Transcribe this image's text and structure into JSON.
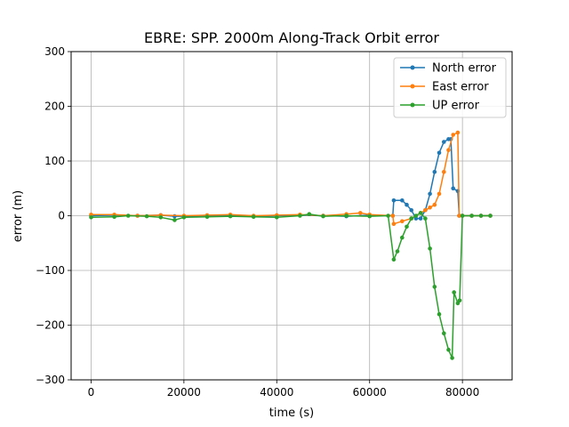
{
  "chart_data": {
    "type": "line",
    "title": "EBRE: SPP. 2000m Along-Track Orbit error",
    "xlabel": "time (s)",
    "ylabel": "error (m)",
    "xlim": [
      -4300,
      90700
    ],
    "ylim": [
      -300,
      300
    ],
    "xticks": [
      0,
      20000,
      40000,
      60000,
      80000
    ],
    "xtick_labels": [
      "0",
      "20000",
      "40000",
      "60000",
      "80000"
    ],
    "yticks": [
      -300,
      -200,
      -100,
      0,
      100,
      200,
      300
    ],
    "ytick_labels": [
      "−300",
      "−200",
      "−100",
      "0",
      "100",
      "200",
      "300"
    ],
    "grid": true,
    "legend_position": "top-right",
    "series": [
      {
        "name": "North error",
        "color": "#1f77b4",
        "x": [
          0,
          5000,
          10000,
          15000,
          18000,
          20000,
          25000,
          30000,
          35000,
          40000,
          45000,
          50000,
          55000,
          60000,
          65000,
          65200,
          67000,
          68000,
          69000,
          70000,
          71000,
          72000,
          73000,
          74000,
          75000,
          76000,
          77000,
          77500,
          78000,
          79000,
          79300,
          80000,
          82000,
          84000,
          86000
        ],
        "values": [
          0,
          1,
          0,
          1,
          -1,
          -1,
          0,
          1,
          -1,
          0,
          1,
          0,
          -1,
          1,
          0,
          28,
          28,
          20,
          10,
          -5,
          -5,
          10,
          40,
          80,
          115,
          135,
          140,
          140,
          50,
          45,
          0,
          0,
          0,
          0,
          0
        ]
      },
      {
        "name": "East error",
        "color": "#ff7f0e",
        "x": [
          0,
          5000,
          10000,
          15000,
          20000,
          25000,
          30000,
          35000,
          40000,
          45000,
          50000,
          55000,
          58000,
          60000,
          65000,
          65200,
          67000,
          69000,
          71000,
          72000,
          73000,
          74000,
          75000,
          76000,
          77000,
          78000,
          79000,
          79300,
          80000,
          82000,
          84000,
          86000
        ],
        "values": [
          2,
          2,
          0,
          1,
          0,
          1,
          2,
          0,
          1,
          2,
          0,
          3,
          5,
          2,
          0,
          -15,
          -10,
          -5,
          5,
          10,
          15,
          20,
          40,
          80,
          120,
          148,
          152,
          0,
          0,
          0,
          0,
          0
        ]
      },
      {
        "name": "UP error",
        "color": "#2ca02c",
        "x": [
          0,
          5000,
          8000,
          12000,
          15000,
          18000,
          20000,
          25000,
          30000,
          35000,
          40000,
          45000,
          47000,
          50000,
          55000,
          60000,
          64000,
          65200,
          66000,
          67000,
          68000,
          69000,
          70000,
          71000,
          72000,
          73000,
          74000,
          75000,
          76000,
          77000,
          77800,
          78200,
          79000,
          79400,
          80000,
          82000,
          84000,
          86000
        ],
        "values": [
          -3,
          -2,
          0,
          -1,
          -3,
          -8,
          -3,
          -2,
          -1,
          -2,
          -3,
          0,
          3,
          -1,
          0,
          -1,
          0,
          -80,
          -65,
          -40,
          -20,
          -5,
          0,
          5,
          -5,
          -60,
          -130,
          -180,
          -215,
          -245,
          -260,
          -140,
          -160,
          -155,
          0,
          0,
          0,
          0
        ]
      }
    ]
  }
}
